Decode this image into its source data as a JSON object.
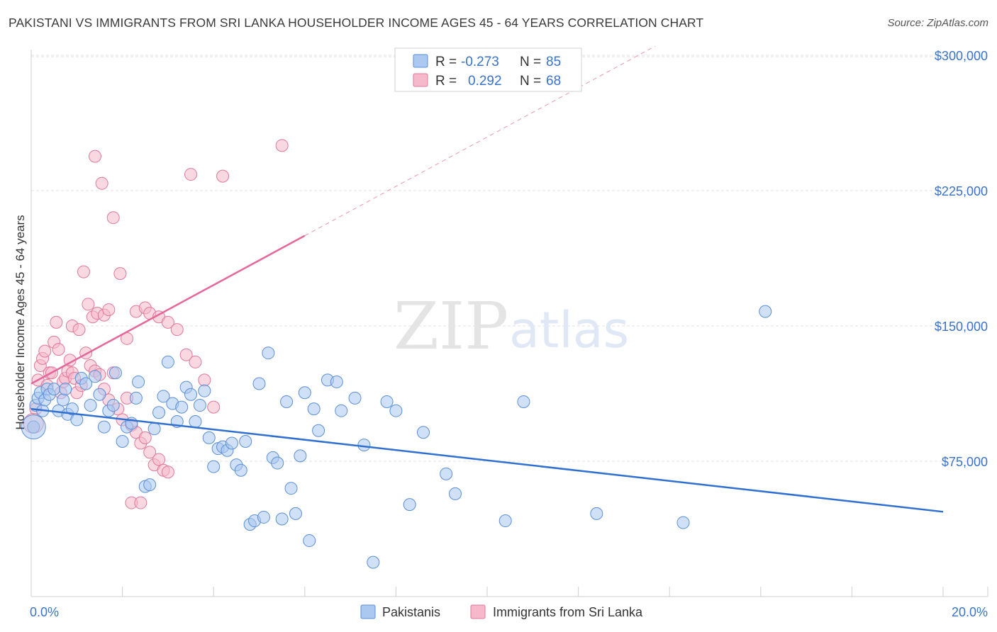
{
  "title": "PAKISTANI VS IMMIGRANTS FROM SRI LANKA HOUSEHOLDER INCOME AGES 45 - 64 YEARS CORRELATION CHART",
  "source": "Source: ZipAtlas.com",
  "watermark": {
    "zip": "ZIP",
    "atlas": "atlas"
  },
  "colors": {
    "blue_fill": "#aac8f0",
    "blue_stroke": "#5b8fd6",
    "blue_line": "#2f70d0",
    "pink_fill": "#f6b8cb",
    "pink_stroke": "#e0789a",
    "pink_line": "#e5689a",
    "axis_label": "#3a72c8",
    "grid": "#dddddd"
  },
  "legend": {
    "rows": [
      {
        "r_label": "R =",
        "r_value": "-0.273",
        "n_label": "N =",
        "n_value": "85"
      },
      {
        "r_label": "R =",
        "r_value": "0.292",
        "n_label": "N =",
        "n_value": "68"
      }
    ]
  },
  "bottom_legend": {
    "series1": "Pakistanis",
    "series2": "Immigrants from Sri Lanka"
  },
  "chart_data": {
    "type": "scatter",
    "title": "PAKISTANI VS IMMIGRANTS FROM SRI LANKA HOUSEHOLDER INCOME AGES 45 - 64 YEARS CORRELATION CHART",
    "xlabel": "",
    "ylabel": "Householder Income Ages 45 - 64 years",
    "xlim": [
      0,
      20
    ],
    "ylim": [
      0,
      310000
    ],
    "x_tick_labels": [
      "0.0%",
      "20.0%"
    ],
    "y_ticks": [
      75000,
      150000,
      225000,
      300000
    ],
    "y_tick_labels": [
      "$75,000",
      "$150,000",
      "$225,000",
      "$300,000"
    ],
    "grid": true,
    "legend_position": "top-center",
    "series": [
      {
        "name": "Pakistanis",
        "r": -0.273,
        "n": 85,
        "trend": {
          "x": [
            0,
            20
          ],
          "y": [
            104000,
            47000
          ],
          "dashed_from": null
        },
        "points": [
          [
            0.1,
            106000
          ],
          [
            0.15,
            110000
          ],
          [
            0.2,
            113000
          ],
          [
            0.25,
            103000
          ],
          [
            0.3,
            109000
          ],
          [
            0.35,
            115000
          ],
          [
            0.4,
            112000
          ],
          [
            0.5,
            115000
          ],
          [
            0.6,
            103000
          ],
          [
            0.7,
            109000
          ],
          [
            0.75,
            115000
          ],
          [
            0.8,
            101000
          ],
          [
            0.9,
            104000
          ],
          [
            1.0,
            98000
          ],
          [
            1.1,
            121000
          ],
          [
            1.2,
            118000
          ],
          [
            1.3,
            106000
          ],
          [
            1.4,
            122000
          ],
          [
            1.5,
            112000
          ],
          [
            1.6,
            94000
          ],
          [
            1.7,
            103000
          ],
          [
            1.8,
            106000
          ],
          [
            1.85,
            124000
          ],
          [
            2.0,
            86000
          ],
          [
            2.1,
            94000
          ],
          [
            2.2,
            96000
          ],
          [
            2.3,
            110000
          ],
          [
            2.35,
            119000
          ],
          [
            2.5,
            61000
          ],
          [
            2.6,
            62000
          ],
          [
            2.7,
            93000
          ],
          [
            2.8,
            102000
          ],
          [
            2.9,
            111000
          ],
          [
            3.0,
            130000
          ],
          [
            3.1,
            107000
          ],
          [
            3.2,
            97000
          ],
          [
            3.3,
            105000
          ],
          [
            3.4,
            116000
          ],
          [
            3.5,
            112000
          ],
          [
            3.6,
            97000
          ],
          [
            3.7,
            106000
          ],
          [
            3.8,
            114000
          ],
          [
            3.9,
            88000
          ],
          [
            4.0,
            72000
          ],
          [
            4.1,
            82000
          ],
          [
            4.2,
            83000
          ],
          [
            4.3,
            81000
          ],
          [
            4.4,
            85000
          ],
          [
            4.5,
            73000
          ],
          [
            4.6,
            70000
          ],
          [
            4.7,
            86000
          ],
          [
            4.8,
            40000
          ],
          [
            4.9,
            42000
          ],
          [
            5.0,
            118000
          ],
          [
            5.1,
            44000
          ],
          [
            5.2,
            135000
          ],
          [
            5.3,
            77000
          ],
          [
            5.4,
            74000
          ],
          [
            5.5,
            43000
          ],
          [
            5.6,
            108000
          ],
          [
            5.7,
            60000
          ],
          [
            5.8,
            46000
          ],
          [
            5.9,
            78000
          ],
          [
            6.0,
            113000
          ],
          [
            6.1,
            31000
          ],
          [
            6.2,
            104000
          ],
          [
            6.3,
            92000
          ],
          [
            6.5,
            120000
          ],
          [
            6.7,
            119000
          ],
          [
            6.8,
            103000
          ],
          [
            7.1,
            110000
          ],
          [
            7.3,
            84000
          ],
          [
            7.5,
            19000
          ],
          [
            7.8,
            108000
          ],
          [
            8.0,
            103000
          ],
          [
            8.3,
            51000
          ],
          [
            8.6,
            91000
          ],
          [
            9.1,
            68000
          ],
          [
            9.3,
            57000
          ],
          [
            10.4,
            42000
          ],
          [
            10.8,
            108000
          ],
          [
            12.4,
            46000
          ],
          [
            14.3,
            41000
          ],
          [
            16.1,
            158000
          ],
          [
            0.05,
            94000
          ]
        ]
      },
      {
        "name": "Immigrants from Sri Lanka",
        "r": 0.292,
        "n": 68,
        "trend": {
          "x": [
            0,
            6.0
          ],
          "y": [
            118000,
            200000
          ],
          "dashed_to": [
            20,
            395000
          ]
        },
        "points": [
          [
            0.05,
            94000
          ],
          [
            0.1,
            104000
          ],
          [
            0.15,
            120000
          ],
          [
            0.2,
            128000
          ],
          [
            0.25,
            132000
          ],
          [
            0.3,
            136000
          ],
          [
            0.35,
            117000
          ],
          [
            0.4,
            124000
          ],
          [
            0.45,
            124000
          ],
          [
            0.5,
            141000
          ],
          [
            0.55,
            152000
          ],
          [
            0.6,
            137000
          ],
          [
            0.65,
            113000
          ],
          [
            0.7,
            119000
          ],
          [
            0.75,
            121000
          ],
          [
            0.8,
            125000
          ],
          [
            0.85,
            131000
          ],
          [
            0.9,
            124000
          ],
          [
            0.95,
            121000
          ],
          [
            1.0,
            113000
          ],
          [
            1.1,
            117000
          ],
          [
            1.2,
            135000
          ],
          [
            1.3,
            128000
          ],
          [
            1.4,
            125000
          ],
          [
            1.5,
            123000
          ],
          [
            1.6,
            115000
          ],
          [
            1.7,
            109000
          ],
          [
            1.8,
            124000
          ],
          [
            1.9,
            104000
          ],
          [
            2.0,
            98000
          ],
          [
            2.1,
            110000
          ],
          [
            2.2,
            95000
          ],
          [
            2.3,
            91000
          ],
          [
            2.4,
            85000
          ],
          [
            2.5,
            88000
          ],
          [
            2.6,
            80000
          ],
          [
            2.7,
            73000
          ],
          [
            2.8,
            76000
          ],
          [
            2.9,
            70000
          ],
          [
            3.0,
            69000
          ],
          [
            1.15,
            180000
          ],
          [
            1.4,
            244000
          ],
          [
            1.55,
            229000
          ],
          [
            1.8,
            210000
          ],
          [
            1.95,
            179000
          ],
          [
            2.1,
            143000
          ],
          [
            2.3,
            158000
          ],
          [
            2.5,
            160000
          ],
          [
            2.6,
            157000
          ],
          [
            2.8,
            155000
          ],
          [
            3.0,
            152000
          ],
          [
            3.2,
            148000
          ],
          [
            3.4,
            134000
          ],
          [
            3.6,
            130000
          ],
          [
            3.8,
            120000
          ],
          [
            4.0,
            105000
          ],
          [
            2.2,
            52000
          ],
          [
            2.4,
            52000
          ],
          [
            0.9,
            150000
          ],
          [
            1.05,
            148000
          ],
          [
            1.25,
            162000
          ],
          [
            1.35,
            155000
          ],
          [
            1.45,
            157000
          ],
          [
            1.6,
            156000
          ],
          [
            1.7,
            159000
          ],
          [
            3.5,
            234000
          ],
          [
            4.2,
            233000
          ],
          [
            5.5,
            250000
          ]
        ]
      }
    ]
  }
}
